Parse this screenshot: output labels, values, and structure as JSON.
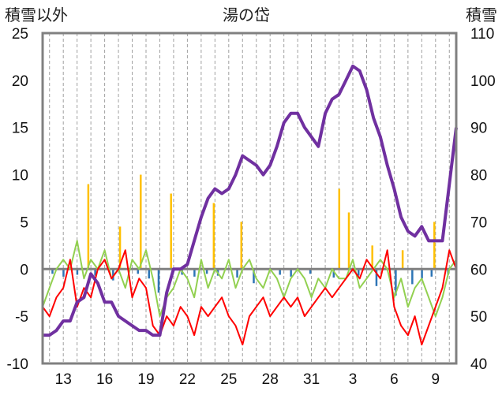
{
  "chart_data": {
    "type": "line",
    "title": "湯の岱",
    "left_axis_label": "積雪以外",
    "right_axis_label": "積雪",
    "left_ylim": [
      -10,
      25
    ],
    "right_ylim": [
      40,
      110
    ],
    "left_ticks": [
      "25",
      "20",
      "15",
      "10",
      "5",
      "0",
      "-5",
      "-10"
    ],
    "right_ticks": [
      "110",
      "100",
      "90",
      "80",
      "70",
      "60",
      "50",
      "40"
    ],
    "x_ticks": [
      "13",
      "16",
      "19",
      "22",
      "25",
      "28",
      "31",
      "3",
      "6",
      "9"
    ],
    "x_tick_positions": [
      13,
      16,
      19,
      22,
      25,
      28,
      31,
      34,
      37,
      40
    ],
    "xlim": [
      11.5,
      41.5
    ],
    "grid": "vertical-dashed",
    "colors": {
      "snow": "#7030a0",
      "temp_max": "#92d050",
      "temp_min": "#ff0000",
      "precip": "#ffc000",
      "wind": "#2e75b6",
      "frame": "#808080",
      "grid": "#a0a0a0",
      "zero": "#808080"
    },
    "series": [
      {
        "axis": "right",
        "x": [
          11.5,
          12.0,
          12.5,
          13.0,
          13.5,
          14.0,
          14.5,
          15.0,
          15.5,
          16.0,
          16.5,
          17.0,
          17.5,
          18.0,
          18.5,
          19.0,
          19.5,
          20.0,
          20.5,
          21.0,
          21.5,
          22.0,
          22.5,
          23.0,
          23.5,
          24.0,
          24.5,
          25.0,
          25.5,
          26.0,
          26.5,
          27.0,
          27.5,
          28.0,
          28.5,
          29.0,
          29.5,
          30.0,
          30.5,
          31.0,
          31.5,
          32.0,
          32.5,
          33.0,
          33.5,
          34.0,
          34.5,
          35.0,
          35.5,
          36.0,
          36.5,
          37.0,
          37.5,
          38.0,
          38.5,
          39.0,
          39.5,
          40.0,
          40.5,
          41.0,
          41.5
        ],
        "values": [
          46,
          46,
          47,
          49,
          49,
          53,
          54,
          59,
          57,
          53,
          53,
          50,
          49,
          48,
          47,
          47,
          46,
          46,
          55,
          60,
          60,
          61,
          66,
          71,
          75,
          77,
          76,
          77,
          80,
          84,
          83,
          82,
          80,
          82,
          86,
          91,
          93,
          93,
          90,
          88,
          86,
          93,
          96,
          97,
          100,
          103,
          102,
          98,
          92,
          88,
          82,
          77,
          71,
          68,
          67,
          69,
          66,
          66,
          66,
          78,
          90
        ]
      },
      {
        "axis": "left",
        "x": [
          11.5,
          12.0,
          12.5,
          13.0,
          13.5,
          14.0,
          14.5,
          15.0,
          15.5,
          16.0,
          16.5,
          17.0,
          17.5,
          18.0,
          18.5,
          19.0,
          19.5,
          20.0,
          20.5,
          21.0,
          21.5,
          22.0,
          22.5,
          23.0,
          23.5,
          24.0,
          24.5,
          25.0,
          25.5,
          26.0,
          26.5,
          27.0,
          27.5,
          28.0,
          28.5,
          29.0,
          29.5,
          30.0,
          30.5,
          31.0,
          31.5,
          32.0,
          32.5,
          33.0,
          33.5,
          34.0,
          34.5,
          35.0,
          35.5,
          36.0,
          36.5,
          37.0,
          37.5,
          38.0,
          38.5,
          39.0,
          39.5,
          40.0,
          40.5,
          41.0,
          41.5
        ],
        "values": [
          -4,
          -2,
          0,
          1,
          0,
          3,
          -1,
          1,
          0,
          2,
          -1,
          0,
          -2,
          1,
          0,
          2,
          -1,
          -5,
          -3,
          -2,
          0,
          -1,
          -3,
          1,
          -2,
          0,
          -1,
          1,
          -2,
          0,
          1,
          -1,
          -2,
          0,
          -1,
          -3,
          -1,
          0,
          -1,
          -3,
          -1,
          -2,
          0,
          -1,
          -1,
          1,
          -2,
          -1,
          0,
          1,
          0,
          -3,
          -1,
          -4,
          -2,
          -1,
          -3,
          -5,
          -3,
          0,
          1
        ]
      },
      {
        "axis": "left",
        "x": [
          11.5,
          12.0,
          12.5,
          13.0,
          13.5,
          14.0,
          14.5,
          15.0,
          15.5,
          16.0,
          16.5,
          17.0,
          17.5,
          18.0,
          18.5,
          19.0,
          19.5,
          20.0,
          20.5,
          21.0,
          21.5,
          22.0,
          22.5,
          23.0,
          23.5,
          24.0,
          24.5,
          25.0,
          25.5,
          26.0,
          26.5,
          27.0,
          27.5,
          28.0,
          28.5,
          29.0,
          29.5,
          30.0,
          30.5,
          31.0,
          31.5,
          32.0,
          32.5,
          33.0,
          33.5,
          34.0,
          34.5,
          35.0,
          35.5,
          36.0,
          36.5,
          37.0,
          37.5,
          38.0,
          38.5,
          39.0,
          39.5,
          40.0,
          40.5,
          41.0,
          41.5
        ],
        "values": [
          -4,
          -5,
          -3,
          -2,
          1,
          -4,
          -2,
          -3,
          0,
          1,
          -1,
          0,
          2,
          -3,
          -1,
          -2,
          -6,
          -7,
          -5,
          -6,
          -4,
          -5,
          -7,
          -4,
          -5,
          -4,
          -3,
          -5,
          -6,
          -8,
          -5,
          -4,
          -3,
          -5,
          -4,
          -3,
          -4,
          -3,
          -5,
          -4,
          -3,
          -2,
          -3,
          -2,
          -1,
          0,
          -1,
          1,
          0,
          -1,
          2,
          -4,
          -6,
          -7,
          -5,
          -8,
          -6,
          -4,
          -2,
          2,
          0
        ]
      },
      {
        "axis": "left",
        "type": "bar",
        "x": [
          14.8,
          17.1,
          18.6,
          20.8,
          23.9,
          25.9,
          33.0,
          33.7,
          35.4,
          37.6,
          39.9
        ],
        "values": [
          9.0,
          4.5,
          10.0,
          8.0,
          7.0,
          5.0,
          8.5,
          6.0,
          2.5,
          2.0,
          5.0
        ]
      },
      {
        "axis": "left",
        "type": "bar",
        "x": [
          12.2,
          13.0,
          14.0,
          15.3,
          16.6,
          18.4,
          19.2,
          19.9,
          21.6,
          22.5,
          23.4,
          24.2,
          25.6,
          26.8,
          28.7,
          29.5,
          30.9,
          32.6,
          34.4,
          35.7,
          37.1,
          38.3,
          39.0,
          39.7,
          40.9
        ],
        "values": [
          -0.5,
          -0.8,
          -0.6,
          -0.7,
          -1.2,
          -0.5,
          -1.0,
          -2.5,
          -0.6,
          -0.8,
          -0.5,
          -0.7,
          -0.9,
          -1.5,
          -0.6,
          -0.8,
          -0.5,
          -0.9,
          -0.7,
          -1.8,
          -2.8,
          -1.6,
          -1.0,
          -0.8,
          -0.6
        ]
      }
    ]
  }
}
